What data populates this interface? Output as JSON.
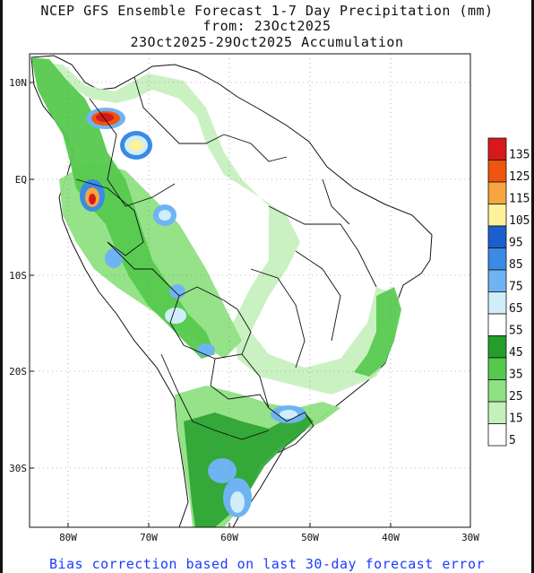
{
  "header": {
    "line1": "NCEP GFS Ensemble Forecast 1-7 Day Precipitation (mm)",
    "line2": "from: 23Oct2025",
    "line3": "23Oct2025-29Oct2025 Accumulation"
  },
  "footer": "Bias correction based on last 30-day forecast error",
  "axes": {
    "lat_labels": [
      "10N",
      "EQ",
      "10S",
      "20S",
      "30S"
    ],
    "lon_labels": [
      "80W",
      "70W",
      "60W",
      "50W",
      "40W",
      "30W"
    ]
  },
  "legend": {
    "levels": [
      "135",
      "125",
      "115",
      "105",
      "95",
      "85",
      "75",
      "65",
      "55",
      "45",
      "35",
      "25",
      "15",
      "5"
    ],
    "colors": [
      "#d7191c",
      "#f0550e",
      "#f6a541",
      "#fdf19a",
      "#1b5fcc",
      "#3a8ae6",
      "#6fb4f2",
      "#cfeefa",
      "#ffffff",
      "#239e2a",
      "#55c94e",
      "#8fe083",
      "#c4f0bb",
      "#ffffff"
    ]
  }
}
